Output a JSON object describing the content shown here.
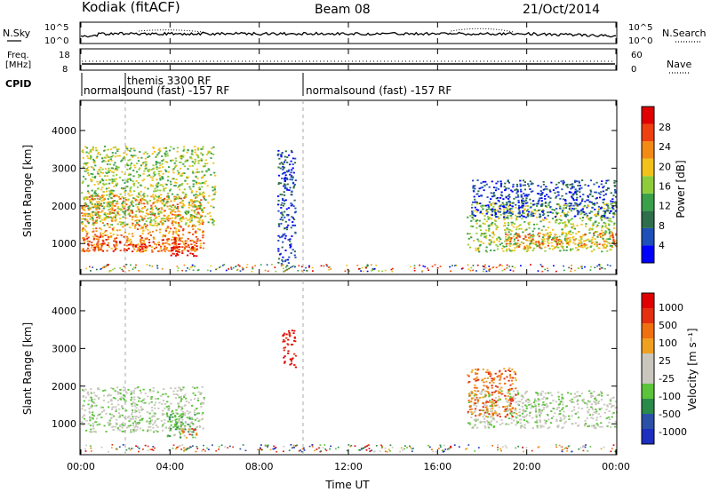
{
  "header": {
    "station": "Kodiak (fitACF)",
    "beam": "Beam 08",
    "date": "21/Oct/2014"
  },
  "noise_panel": {
    "left_label": "N.Sky",
    "right_label": "N.Search",
    "left_ticks": [
      "10^5",
      "10^0"
    ],
    "right_ticks": [
      "10^5",
      "10^0"
    ]
  },
  "freq_panel": {
    "left_label_1": "Freq.",
    "left_label_2": "[MHz]",
    "right_label": "Nave",
    "left_ticks": [
      "18",
      "8"
    ],
    "right_ticks": [
      "60",
      "0"
    ]
  },
  "cpid_panel": {
    "label": "CPID",
    "segments": [
      {
        "name": "normalsound (fast) -157 RF",
        "start_hour": 0,
        "end_hour": 10
      },
      {
        "name": "themis 3300 RF",
        "start_hour": 2,
        "end_hour": 2.1
      },
      {
        "name": "normalsound (fast) -157 RF",
        "start_hour": 10,
        "end_hour": 24
      }
    ]
  },
  "power_panel": {
    "ylabel": "Slant Range [km]",
    "yticks": [
      "4000",
      "3000",
      "2000",
      "1000"
    ],
    "colorbar_label": "Power [dB]",
    "colorbar_ticks": [
      "28",
      "24",
      "20",
      "16",
      "12",
      "8",
      "4"
    ]
  },
  "velocity_panel": {
    "ylabel": "Slant Range [km]",
    "yticks": [
      "4000",
      "3000",
      "2000",
      "1000"
    ],
    "colorbar_label": "Velocity [m s⁻¹]",
    "colorbar_ticks": [
      "1000",
      "500",
      "100",
      "25",
      "-25",
      "-100",
      "-500",
      "-1000"
    ]
  },
  "x_axis": {
    "label": "Time UT",
    "ticks": [
      "00:00",
      "04:00",
      "08:00",
      "12:00",
      "16:00",
      "20:00",
      "00:00"
    ]
  },
  "chart_data": {
    "type": "heatmap",
    "x": "time (hours UT)",
    "xlim": [
      0,
      24
    ],
    "ylim_km": [
      180,
      4800
    ],
    "power_colors": [
      "#0000ff",
      "#1f4fb8",
      "#2e6e4a",
      "#3aa04a",
      "#8fcc3a",
      "#f2c21a",
      "#f28a14",
      "#ee4010",
      "#e00000"
    ],
    "velocity_colors": [
      "#1c2fc0",
      "#2a50a8",
      "#2a8a4a",
      "#5cc43a",
      "#c8c6bd",
      "#c8c6bd",
      "#f0a020",
      "#f07010",
      "#e43010",
      "#e00000"
    ],
    "power_blobs": [
      {
        "t0": 0,
        "t1": 5.5,
        "r0": 800,
        "r1": 2300,
        "level": 6
      },
      {
        "t0": 0,
        "t1": 5.2,
        "r0": 800,
        "r1": 1200,
        "level": 7
      },
      {
        "t0": 4.0,
        "t1": 5.2,
        "r0": 650,
        "r1": 1050,
        "level": 8
      },
      {
        "t0": 0,
        "t1": 6.0,
        "r0": 1500,
        "r1": 3600,
        "level": 4
      },
      {
        "t0": 17.3,
        "t1": 24,
        "r0": 800,
        "r1": 2100,
        "level": 4
      },
      {
        "t0": 19,
        "t1": 24,
        "r0": 900,
        "r1": 1300,
        "level": 6
      },
      {
        "t0": 17.5,
        "t1": 24,
        "r0": 1700,
        "r1": 2700,
        "level": 1
      },
      {
        "t0": 8.8,
        "t1": 9.6,
        "r0": 400,
        "r1": 3500,
        "level": 1
      }
    ],
    "velocity_blobs": [
      {
        "t0": 0,
        "t1": 5.5,
        "r0": 800,
        "r1": 2000,
        "level": 4
      },
      {
        "t0": 3.8,
        "t1": 5.2,
        "r0": 650,
        "r1": 1300,
        "level": 3
      },
      {
        "t0": 4.5,
        "t1": 5.2,
        "r0": 650,
        "r1": 900,
        "level": 7
      },
      {
        "t0": 17.3,
        "t1": 24,
        "r0": 900,
        "r1": 1900,
        "level": 4
      },
      {
        "t0": 17.3,
        "t1": 19.5,
        "r0": 1200,
        "r1": 2500,
        "level": 7
      },
      {
        "t0": 9.0,
        "t1": 9.6,
        "r0": 2500,
        "r1": 3500,
        "level": 9
      }
    ]
  }
}
